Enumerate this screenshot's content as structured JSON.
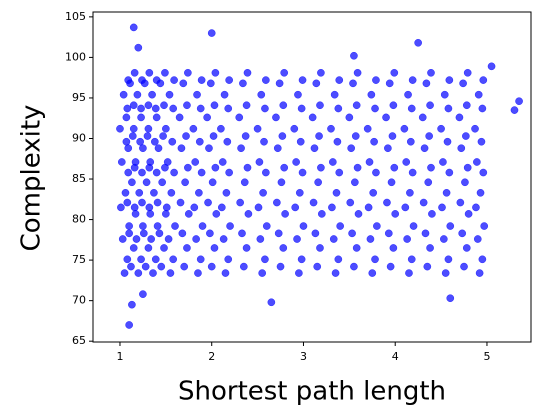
{
  "chart_data": {
    "type": "scatter",
    "x_label": "Shortest path length",
    "y_label": "Complexity",
    "xlim": [
      0.706,
      5.48
    ],
    "ylim": [
      64.9,
      105.6
    ],
    "xticks": [
      1,
      2,
      3,
      4,
      5
    ],
    "yticks": [
      65,
      70,
      75,
      80,
      85,
      90,
      95,
      100,
      105
    ],
    "grid": false,
    "series": [
      {
        "color": "#0000ff",
        "x": [
          1.05,
          1.08,
          1.03,
          1.1,
          1.01,
          1.06,
          1.09,
          1.02,
          1.07,
          1,
          1.08,
          1.04,
          1.09,
          1.12,
          1.15,
          1.1,
          1.17,
          1.08,
          1.13,
          1.16,
          1.09,
          1.14,
          1.07,
          1.15,
          1.11,
          1.16,
          1.2,
          1.23,
          1.18,
          1.25,
          1.16,
          1.21,
          1.24,
          1.17,
          1.22,
          1.15,
          1.23,
          1.19,
          1.24,
          1.28,
          1.31,
          1.26,
          1.33,
          1.24,
          1.29,
          1.32,
          1.25,
          1.3,
          1.23,
          1.31,
          1.27,
          1.32,
          1.36,
          1.39,
          1.34,
          1.41,
          1.32,
          1.37,
          1.4,
          1.33,
          1.38,
          1.31,
          1.39,
          1.35,
          1.4,
          1.45,
          1.48,
          1.43,
          1.5,
          1.41,
          1.46,
          1.49,
          1.42,
          1.47,
          1.4,
          1.48,
          1.44,
          1.49,
          1.55,
          1.58,
          1.53,
          1.6,
          1.51,
          1.56,
          1.59,
          1.52,
          1.57,
          1.5,
          1.58,
          1.54,
          1.59,
          1.7,
          1.73,
          1.68,
          1.75,
          1.66,
          1.71,
          1.74,
          1.67,
          1.72,
          1.65,
          1.73,
          1.69,
          1.74,
          1.85,
          1.88,
          1.83,
          1.9,
          1.81,
          1.86,
          1.89,
          1.82,
          1.87,
          1.8,
          1.88,
          1.84,
          1.89,
          2,
          2.03,
          1.98,
          2.05,
          1.96,
          2.01,
          2.04,
          1.97,
          2.02,
          1.95,
          2.03,
          1.99,
          2.04,
          2.15,
          2.18,
          2.13,
          2.2,
          2.11,
          2.16,
          2.19,
          2.12,
          2.17,
          2.1,
          2.18,
          2.14,
          2.19,
          2.35,
          2.38,
          2.33,
          2.4,
          2.31,
          2.36,
          2.39,
          2.32,
          2.37,
          2.3,
          2.38,
          2.34,
          2.39,
          2.55,
          2.58,
          2.53,
          2.6,
          2.51,
          2.56,
          2.59,
          2.52,
          2.57,
          2.5,
          2.58,
          2.54,
          2.59,
          2.75,
          2.78,
          2.73,
          2.8,
          2.71,
          2.76,
          2.79,
          2.72,
          2.77,
          2.7,
          2.78,
          2.74,
          2.79,
          2.95,
          2.98,
          2.93,
          3,
          2.91,
          2.96,
          2.99,
          2.92,
          2.97,
          2.9,
          2.98,
          2.94,
          2.99,
          3.15,
          3.18,
          3.13,
          3.2,
          3.11,
          3.16,
          3.19,
          3.12,
          3.17,
          3.1,
          3.18,
          3.14,
          3.19,
          3.35,
          3.38,
          3.33,
          3.4,
          3.31,
          3.36,
          3.39,
          3.32,
          3.37,
          3.3,
          3.38,
          3.34,
          3.39,
          3.55,
          3.58,
          3.53,
          3.6,
          3.51,
          3.56,
          3.59,
          3.52,
          3.57,
          3.5,
          3.58,
          3.54,
          3.59,
          3.75,
          3.78,
          3.73,
          3.8,
          3.71,
          3.76,
          3.79,
          3.72,
          3.77,
          3.7,
          3.78,
          3.74,
          3.79,
          3.95,
          3.98,
          3.93,
          4,
          3.91,
          3.96,
          3.99,
          3.92,
          3.97,
          3.9,
          3.98,
          3.94,
          3.99,
          4.15,
          4.18,
          4.13,
          4.2,
          4.11,
          4.16,
          4.19,
          4.12,
          4.17,
          4.1,
          4.18,
          4.14,
          4.19,
          4.35,
          4.38,
          4.33,
          4.4,
          4.31,
          4.36,
          4.39,
          4.32,
          4.37,
          4.3,
          4.38,
          4.34,
          4.39,
          4.55,
          4.58,
          4.53,
          4.6,
          4.51,
          4.56,
          4.59,
          4.52,
          4.57,
          4.5,
          4.58,
          4.54,
          4.59,
          4.75,
          4.78,
          4.73,
          4.8,
          4.71,
          4.76,
          4.79,
          4.72,
          4.77,
          4.7,
          4.78,
          4.74,
          4.79,
          4.92,
          4.95,
          4.9,
          4.97,
          4.88,
          4.93,
          4.96,
          4.89,
          4.94,
          4.87,
          4.95,
          4.91,
          4.96,
          1.1,
          1.15,
          2.0,
          4.25,
          5.35,
          5.3,
          2.65,
          4.6,
          1.13,
          3.55,
          1.2,
          5.05,
          1.25
        ],
        "values": [
          73.4,
          75.1,
          77.6,
          79.2,
          81.5,
          83.3,
          85.8,
          87.1,
          89.6,
          91.2,
          93.7,
          95.4,
          97.2,
          74.2,
          76.5,
          78.3,
          80.7,
          82.1,
          84.6,
          86.4,
          88.8,
          90.3,
          92.6,
          94.1,
          96.8,
          98.1,
          73.4,
          75.1,
          77.6,
          79.2,
          81.5,
          83.3,
          85.8,
          87.1,
          89.6,
          91.2,
          93.7,
          95.4,
          97.2,
          74.2,
          76.5,
          78.3,
          80.7,
          82.1,
          84.6,
          86.4,
          88.8,
          90.3,
          92.6,
          94.1,
          96.8,
          98.1,
          73.4,
          75.1,
          77.6,
          79.2,
          81.5,
          83.3,
          85.8,
          87.1,
          89.6,
          91.2,
          93.7,
          95.4,
          97.2,
          74.2,
          76.5,
          78.3,
          80.7,
          82.1,
          84.6,
          86.4,
          88.8,
          90.3,
          92.6,
          94.1,
          96.8,
          98.1,
          73.4,
          75.1,
          77.6,
          79.2,
          81.5,
          83.3,
          85.8,
          87.1,
          89.6,
          91.2,
          93.7,
          95.4,
          97.2,
          74.2,
          76.5,
          78.3,
          80.7,
          82.1,
          84.6,
          86.4,
          88.8,
          90.3,
          92.6,
          94.1,
          96.8,
          98.1,
          73.4,
          75.1,
          77.6,
          79.2,
          81.5,
          83.3,
          85.8,
          87.1,
          89.6,
          91.2,
          93.7,
          95.4,
          97.2,
          74.2,
          76.5,
          78.3,
          80.7,
          82.1,
          84.6,
          86.4,
          88.8,
          90.3,
          92.6,
          94.1,
          96.8,
          98.1,
          73.4,
          75.1,
          77.6,
          79.2,
          81.5,
          83.3,
          85.8,
          87.1,
          89.6,
          91.2,
          93.7,
          95.4,
          97.2,
          74.2,
          76.5,
          78.3,
          80.7,
          82.1,
          84.6,
          86.4,
          88.8,
          90.3,
          92.6,
          94.1,
          96.8,
          98.1,
          73.4,
          75.1,
          77.6,
          79.2,
          81.5,
          83.3,
          85.8,
          87.1,
          89.6,
          91.2,
          93.7,
          95.4,
          97.2,
          74.2,
          76.5,
          78.3,
          80.7,
          82.1,
          84.6,
          86.4,
          88.8,
          90.3,
          92.6,
          94.1,
          96.8,
          98.1,
          73.4,
          75.1,
          77.6,
          79.2,
          81.5,
          83.3,
          85.8,
          87.1,
          89.6,
          91.2,
          93.7,
          95.4,
          97.2,
          74.2,
          76.5,
          78.3,
          80.7,
          82.1,
          84.6,
          86.4,
          88.8,
          90.3,
          92.6,
          94.1,
          96.8,
          98.1,
          73.4,
          75.1,
          77.6,
          79.2,
          81.5,
          83.3,
          85.8,
          87.1,
          89.6,
          91.2,
          93.7,
          95.4,
          97.2,
          74.2,
          76.5,
          78.3,
          80.7,
          82.1,
          84.6,
          86.4,
          88.8,
          90.3,
          92.6,
          94.1,
          96.8,
          98.1,
          73.4,
          75.1,
          77.6,
          79.2,
          81.5,
          83.3,
          85.8,
          87.1,
          89.6,
          91.2,
          93.7,
          95.4,
          97.2,
          74.2,
          76.5,
          78.3,
          80.7,
          82.1,
          84.6,
          86.4,
          88.8,
          90.3,
          92.6,
          94.1,
          96.8,
          98.1,
          73.4,
          75.1,
          77.6,
          79.2,
          81.5,
          83.3,
          85.8,
          87.1,
          89.6,
          91.2,
          93.7,
          95.4,
          97.2,
          74.2,
          76.5,
          78.3,
          80.7,
          82.1,
          84.6,
          86.4,
          88.8,
          90.3,
          92.6,
          94.1,
          96.8,
          98.1,
          73.4,
          75.1,
          77.6,
          79.2,
          81.5,
          83.3,
          85.8,
          87.1,
          89.6,
          91.2,
          93.7,
          95.4,
          97.2,
          74.2,
          76.5,
          78.3,
          80.7,
          82.1,
          84.6,
          86.4,
          88.8,
          90.3,
          92.6,
          94.1,
          96.8,
          98.1,
          73.4,
          75.1,
          77.6,
          79.2,
          81.5,
          83.3,
          85.8,
          87.1,
          89.6,
          91.2,
          93.7,
          95.4,
          97.2,
          67,
          103.7,
          103,
          101.8,
          94.6,
          93.5,
          69.8,
          70.3,
          69.5,
          100.2,
          101.2,
          98.9,
          70.8
        ]
      }
    ]
  }
}
